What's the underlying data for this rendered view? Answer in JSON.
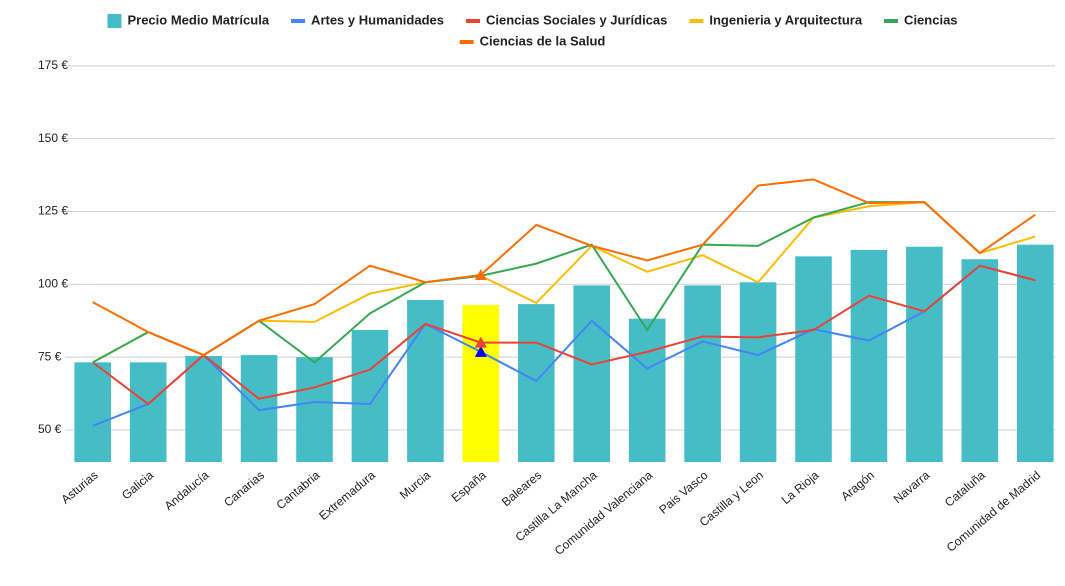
{
  "chart_data": {
    "type": "bar_line",
    "categories": [
      "Asturias",
      "Galicia",
      "Andalucía",
      "Canarias",
      "Cantabria",
      "Extremadura",
      "Murcia",
      "España",
      "Baleares",
      "Castilla La Mancha",
      "Comunidad Valenciana",
      "Pais Vasco",
      "Castilla y Leon",
      "La Rioja",
      "Aragón",
      "Navarra",
      "Cataluña",
      "Comunidad de Madrid"
    ],
    "series": [
      {
        "name": "Precio Medio Matrícula",
        "kind": "bar",
        "color": "#46bdc6",
        "highlight": {
          "category": "España",
          "color": "#ffff00"
        },
        "values": [
          73.2,
          73.2,
          75.4,
          75.7,
          75,
          84.3,
          94.6,
          92.9,
          93.2,
          99.6,
          88.2,
          99.6,
          100.7,
          109.6,
          111.8,
          112.9,
          108.6,
          113.6
        ]
      },
      {
        "name": "Artes y Humanidades",
        "kind": "line",
        "color": "#4285f4",
        "marker": {
          "category": "España",
          "color": "#0000ff"
        },
        "values": [
          51.4,
          58.9,
          75.7,
          56.8,
          59.6,
          58.9,
          86.4,
          76.8,
          66.8,
          87.5,
          71.1,
          80.4,
          75.7,
          84.6,
          80.7,
          90.7,
          106.4,
          101.4
        ]
      },
      {
        "name": "Ciencias Sociales y Jurídicas",
        "kind": "line",
        "color": "#ea4335",
        "marker": {
          "category": "España",
          "color": "#ea4335"
        },
        "values": [
          73.2,
          58.9,
          75.7,
          60.7,
          64.6,
          70.7,
          86.4,
          80,
          80,
          72.5,
          76.8,
          82.1,
          81.8,
          84.3,
          96.1,
          90.7,
          106.4,
          101.4
        ]
      },
      {
        "name": "Ingenieria y Arquitectura",
        "kind": "line",
        "color": "#fbbc04",
        "values": [
          73.2,
          83.6,
          75.7,
          87.5,
          87.1,
          96.8,
          100.7,
          102.9,
          93.6,
          113.2,
          104.3,
          110,
          100.7,
          122.9,
          126.8,
          128.2,
          110.7,
          116.4
        ]
      },
      {
        "name": "Ciencias",
        "kind": "line",
        "color": "#34a853",
        "values": [
          73.2,
          83.6,
          75.7,
          87.5,
          73.2,
          90,
          100.7,
          102.9,
          107.1,
          113.6,
          84.3,
          113.6,
          113.2,
          122.9,
          128.2,
          128.2,
          110.7,
          null
        ]
      },
      {
        "name": "Ciencias de la Salud",
        "kind": "line",
        "color": "#ff6d01",
        "marker": {
          "category": "España",
          "color": "#ff6d01"
        },
        "values": [
          93.9,
          83.6,
          75.7,
          87.5,
          93.2,
          106.4,
          100.7,
          103.2,
          120.4,
          113.2,
          108.2,
          113.6,
          133.9,
          136,
          127.9,
          128.2,
          110.7,
          123.9
        ]
      }
    ],
    "ylim": [
      39,
      177
    ],
    "yticks": [
      {
        "value": 50,
        "label": "50 €"
      },
      {
        "value": 75,
        "label": "75 €"
      },
      {
        "value": 100,
        "label": "100 €"
      },
      {
        "value": 125,
        "label": "125 €"
      },
      {
        "value": 150,
        "label": "150 €"
      },
      {
        "value": 175,
        "label": "175 €"
      }
    ],
    "grid": true,
    "legend": "top"
  }
}
